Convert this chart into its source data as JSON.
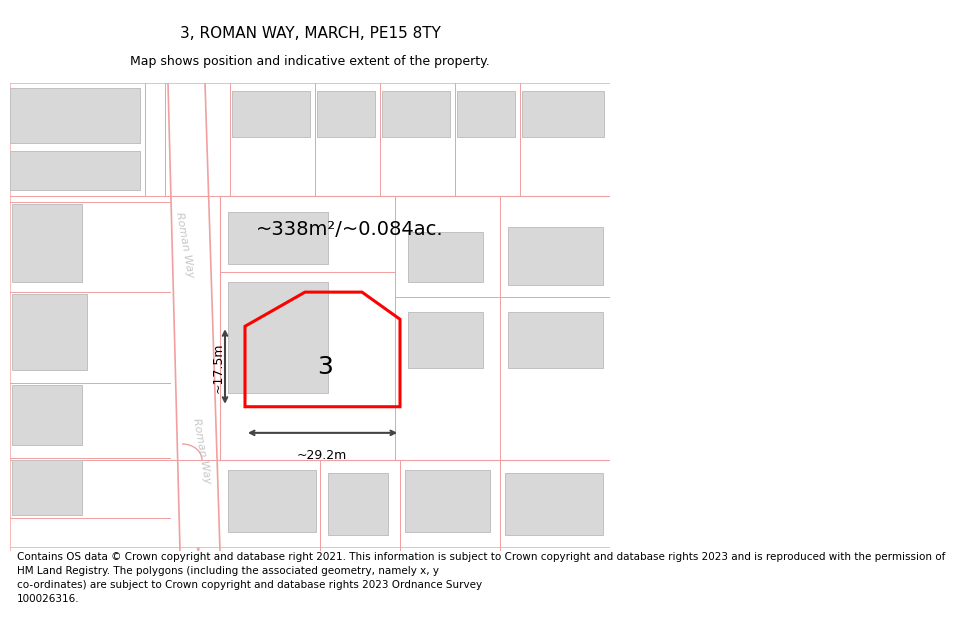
{
  "title": "3, ROMAN WAY, MARCH, PE15 8TY",
  "subtitle": "Map shows position and indicative extent of the property.",
  "footer": "Contains OS data © Crown copyright and database right 2021. This information is subject to Crown copyright and database rights 2023 and is reproduced with the permission of\nHM Land Registry. The polygons (including the associated geometry, namely x, y\nco-ordinates) are subject to Crown copyright and database rights 2023 Ordnance Survey\n100026316.",
  "area_label": "~338m²/~0.084ac.",
  "width_label": "~29.2m",
  "height_label": "~17.5m",
  "plot_number": "3",
  "bg_color": "#ffffff",
  "road_line": "#f0a0a0",
  "bld_fill": "#d8d8d8",
  "bld_line": "#c0c0c0",
  "highlight": "#ff0000",
  "dim_color": "#444444",
  "road_label_color": "#c8c8c8",
  "title_fs": 11,
  "subtitle_fs": 9,
  "footer_fs": 7.5,
  "area_fs": 14,
  "plot_num_fs": 18,
  "dim_fs": 9
}
